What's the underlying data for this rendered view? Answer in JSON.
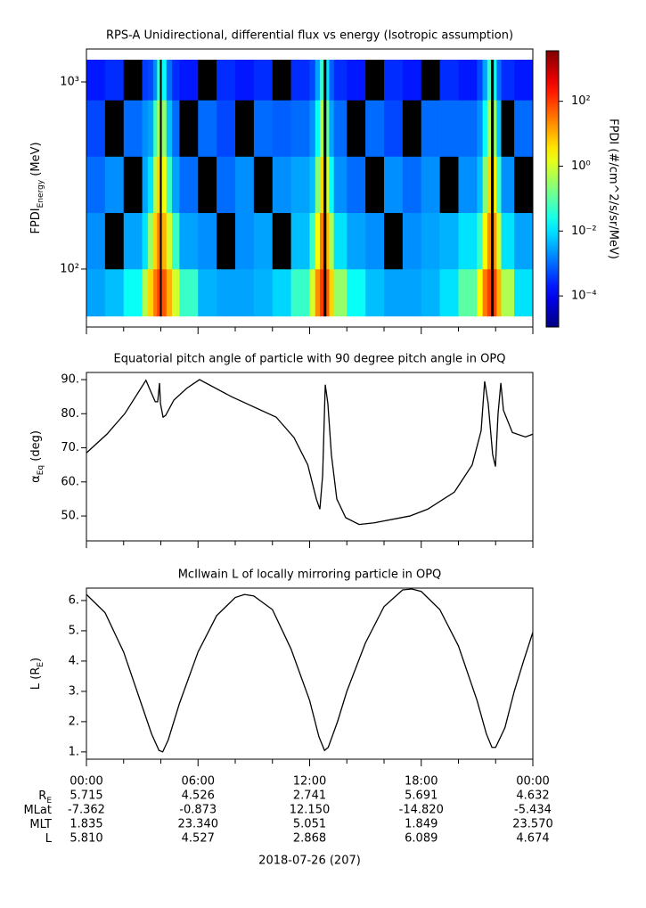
{
  "chart_data": [
    {
      "type": "heatmap",
      "title": "RPS-A Unidirectional, differential flux vs energy (Isotropic assumption)",
      "ylabel": [
        {
          "text": "FPDI"
        },
        {
          "text": "Energy",
          "sub": true
        },
        {
          "text": " (MeV)"
        }
      ],
      "x_edges": [
        0,
        1,
        2,
        3,
        3.3,
        3.6,
        3.8,
        3.95,
        4.05,
        4.3,
        4.6,
        5,
        6,
        7,
        8,
        9,
        10,
        11,
        12,
        12.3,
        12.55,
        12.75,
        12.9,
        13.05,
        13.3,
        14,
        15,
        16,
        17,
        18,
        19,
        20,
        21,
        21.3,
        21.55,
        21.75,
        21.9,
        22.05,
        22.3,
        23,
        24
      ],
      "y_edges": [
        56,
        100,
        200,
        400,
        800,
        1315
      ],
      "z": [
        [
          0.003,
          0.005,
          0.02,
          0.5,
          5,
          30,
          100,
          5e-06,
          60,
          10,
          1,
          0.05,
          0.004,
          0.003,
          0.003,
          0.004,
          0.008,
          0.05,
          1,
          20,
          100,
          5e-06,
          50,
          5,
          0.3,
          0.02,
          0.005,
          0.003,
          0.003,
          0.004,
          0.01,
          0.1,
          2,
          30,
          100,
          5e-06,
          80,
          10,
          0.5,
          0.01
        ],
        [
          0.002,
          5e-06,
          0.003,
          0.01,
          0.3,
          5,
          30,
          5e-06,
          10,
          1,
          0.05,
          0.003,
          0.002,
          5e-06,
          0.002,
          0.003,
          5e-06,
          0.005,
          0.05,
          2,
          30,
          5e-06,
          8,
          0.5,
          0.01,
          0.003,
          0.002,
          5e-06,
          0.002,
          0.003,
          0.004,
          0.01,
          0.05,
          2,
          20,
          5e-06,
          15,
          1,
          0.01,
          0.003
        ],
        [
          0.001,
          0.002,
          5e-06,
          0.003,
          0.01,
          0.5,
          5,
          5e-06,
          2,
          0.05,
          0.003,
          0.001,
          5e-06,
          0.001,
          0.002,
          5e-06,
          0.002,
          0.003,
          0.005,
          0.2,
          5,
          5e-06,
          1,
          0.02,
          0.002,
          0.001,
          5e-06,
          0.002,
          0.001,
          0.002,
          5e-06,
          0.002,
          0.005,
          0.2,
          5,
          5e-06,
          3,
          0.05,
          0.002,
          5e-06
        ],
        [
          0.0005,
          5e-06,
          0.001,
          0.002,
          0.003,
          0.05,
          0.5,
          5e-06,
          0.3,
          0.005,
          0.001,
          5e-06,
          0.001,
          0.0005,
          5e-06,
          0.001,
          0.0008,
          0.001,
          0.002,
          0.02,
          0.5,
          5e-06,
          0.1,
          0.003,
          0.001,
          5e-06,
          0.001,
          0.0005,
          5e-06,
          0.001,
          0.001,
          0.001,
          0.002,
          0.02,
          0.5,
          5e-06,
          0.3,
          0.005,
          5e-06,
          0.001
        ],
        [
          0.0002,
          0.0003,
          5e-06,
          0.0004,
          0.0005,
          0.002,
          0.05,
          5e-06,
          0.02,
          0.001,
          0.0003,
          0.0002,
          5e-06,
          0.0003,
          0.0002,
          0.0003,
          5e-06,
          0.0003,
          0.0005,
          0.003,
          0.05,
          5e-06,
          0.01,
          0.0008,
          0.0003,
          0.0002,
          5e-06,
          0.0003,
          0.0002,
          5e-06,
          0.0003,
          0.0002,
          0.0005,
          0.003,
          0.05,
          5e-06,
          0.02,
          0.001,
          0.0003,
          0.0002
        ]
      ],
      "ylog": true,
      "ylim": [
        49,
        1500
      ],
      "yticks": [
        {
          "value": 100,
          "label": "10²"
        },
        {
          "value": 1000,
          "label": "10³"
        }
      ],
      "xlim": [
        0,
        24
      ],
      "xticks": [
        0,
        6,
        12,
        18,
        24
      ],
      "xminorticks": [
        2,
        4,
        8,
        10,
        14,
        16,
        20,
        22
      ],
      "colorbar": {
        "label": "FPDI (#/cm^2/s/sr/MeV)",
        "log": true,
        "clim": [
          1.1e-05,
          3600
        ],
        "colormap": "jet",
        "below_color": "#000000",
        "ticks": [
          {
            "value": 0.0001,
            "label": "10⁻⁴"
          },
          {
            "value": 0.01,
            "label": "10⁻²"
          },
          {
            "value": 1,
            "label": "10⁰"
          },
          {
            "value": 100,
            "label": "10²"
          }
        ]
      }
    },
    {
      "type": "line",
      "title": "Equatorial pitch angle of particle with 90 degree pitch angle in OPQ",
      "ylabel": [
        {
          "text": "α"
        },
        {
          "text": "Eq",
          "sub": true
        },
        {
          "text": " (deg)"
        }
      ],
      "x": [
        0,
        1.1,
        2.06,
        3.2,
        3.5,
        3.7,
        3.83,
        3.93,
        3.98,
        4.12,
        4.26,
        4.7,
        5.4,
        6.08,
        7.8,
        10.2,
        11.16,
        11.9,
        12.36,
        12.55,
        12.7,
        12.84,
        12.98,
        13.17,
        13.46,
        13.94,
        14.66,
        15.47,
        17.39,
        18.35,
        19.78,
        20.74,
        21.22,
        21.41,
        21.6,
        21.84,
        21.99,
        22.13,
        22.28,
        22.42,
        22.9,
        23.6,
        24
      ],
      "values": [
        68.5,
        74,
        80,
        89.8,
        86,
        83.5,
        83.5,
        89,
        83,
        79,
        79.5,
        84,
        87.5,
        90,
        85,
        79,
        73,
        65,
        55,
        52,
        62,
        88.5,
        83,
        68,
        55,
        49.5,
        47.5,
        48,
        50,
        52,
        57,
        65,
        75,
        89.5,
        83,
        68,
        64.5,
        80,
        89,
        81,
        74.5,
        73.2,
        74
      ],
      "color": "#000000",
      "ylim": [
        42.7,
        92.1
      ],
      "yticks": [
        {
          "value": 50,
          "label": "50."
        },
        {
          "value": 60,
          "label": "60."
        },
        {
          "value": 70,
          "label": "70."
        },
        {
          "value": 80,
          "label": "80."
        },
        {
          "value": 90,
          "label": "90."
        }
      ],
      "xlim": [
        0,
        24
      ],
      "xticks": [
        0,
        6,
        12,
        18,
        24
      ],
      "xminorticks": [
        2,
        4,
        8,
        10,
        14,
        16,
        20,
        22
      ]
    },
    {
      "type": "line",
      "title": "McIlwain L of locally mirroring particle in OPQ",
      "ylabel": [
        {
          "text": "L (R"
        },
        {
          "text": "E",
          "sub": true
        },
        {
          "text": ")"
        }
      ],
      "x": [
        0,
        1,
        2,
        3,
        3.5,
        3.9,
        4.1,
        4.4,
        5,
        6,
        7,
        8,
        8.5,
        9,
        10,
        11,
        12,
        12.5,
        12.8,
        13,
        13.5,
        14,
        15,
        16,
        17,
        17.5,
        18,
        19,
        20,
        21,
        21.5,
        21.8,
        22,
        22.5,
        23,
        23.5,
        24
      ],
      "values": [
        6.2,
        5.6,
        4.3,
        2.5,
        1.6,
        1.05,
        1,
        1.4,
        2.6,
        4.3,
        5.5,
        6.1,
        6.2,
        6.15,
        5.7,
        4.4,
        2.7,
        1.5,
        1.05,
        1.15,
        2,
        3,
        4.6,
        5.8,
        6.35,
        6.38,
        6.3,
        5.7,
        4.5,
        2.7,
        1.6,
        1.15,
        1.15,
        1.8,
        3,
        4,
        4.95
      ],
      "color": "#000000",
      "ylim": [
        0.76,
        6.41
      ],
      "yticks": [
        {
          "value": 1,
          "label": "1."
        },
        {
          "value": 2,
          "label": "2."
        },
        {
          "value": 3,
          "label": "3."
        },
        {
          "value": 4,
          "label": "4."
        },
        {
          "value": 5,
          "label": "5."
        },
        {
          "value": 6,
          "label": "6."
        }
      ],
      "xlim": [
        0,
        24
      ],
      "xticks": [
        {
          "value": 0,
          "label": "00:00"
        },
        {
          "value": 6,
          "label": "06:00"
        },
        {
          "value": 12,
          "label": "12:00"
        },
        {
          "value": 18,
          "label": "18:00"
        },
        {
          "value": 24,
          "label": "00:00"
        }
      ],
      "xminorticks": [
        2,
        4,
        8,
        10,
        14,
        16,
        20,
        22
      ]
    }
  ],
  "ephemeris": {
    "date": "2018-07-26 (207)",
    "rows": [
      {
        "label": [
          {
            "text": "R"
          },
          {
            "text": "E",
            "sub": true
          }
        ],
        "values": [
          "5.715",
          "4.526",
          "2.741",
          "5.691",
          "4.632"
        ]
      },
      {
        "label": [
          {
            "text": "MLat"
          }
        ],
        "values": [
          "-7.362",
          "-0.873",
          "12.150",
          "-14.820",
          "-5.434"
        ]
      },
      {
        "label": [
          {
            "text": "MLT"
          }
        ],
        "values": [
          "1.835",
          "23.340",
          "5.051",
          "1.849",
          "23.570"
        ]
      },
      {
        "label": [
          {
            "text": "L"
          }
        ],
        "values": [
          "5.810",
          "4.527",
          "2.868",
          "6.089",
          "4.674"
        ]
      }
    ]
  }
}
